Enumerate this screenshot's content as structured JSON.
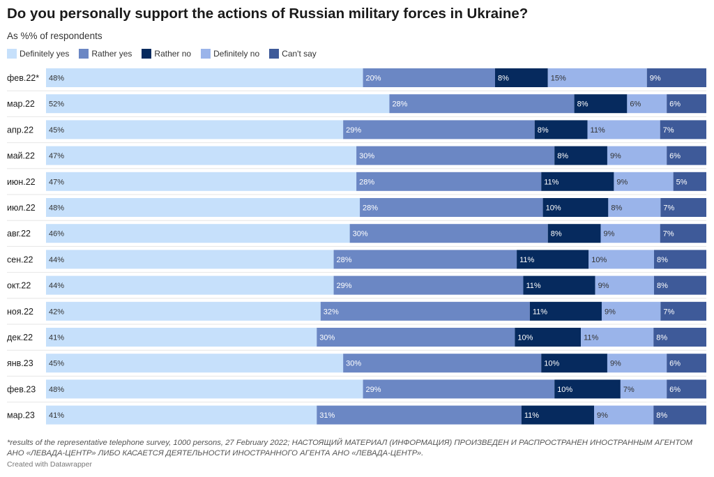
{
  "title": "Do you personally support the actions of Russian military forces in Ukraine?",
  "subtitle": "As %% of respondents",
  "footnote": "*results of the representative telephone survey, 1000 persons, 27 February 2022; НАСТОЯЩИЙ МАТЕРИАЛ (ИНФОРМАЦИЯ) ПРОИЗВЕДЕН И РАСПРОСТРАНЕН ИНОСТРАННЫМ АГЕНТОМ АНО «ЛЕВАДА-ЦЕНТР» ЛИБО КАСАЕТСЯ ДЕЯТЕЛЬНОСТИ ИНОСТРАННОГО АГЕНТА АНО «ЛЕВАДА-ЦЕНТР».",
  "credit": "Created with Datawrapper",
  "legend": [
    {
      "label": "Definitely yes",
      "color": "#c6e0fb"
    },
    {
      "label": "Rather yes",
      "color": "#6b87c4"
    },
    {
      "label": "Rather no",
      "color": "#062a5e"
    },
    {
      "label": "Definitely no",
      "color": "#9ab4ea"
    },
    {
      "label": "Can't say",
      "color": "#3e5a99"
    }
  ],
  "chart_data": {
    "type": "bar",
    "orientation": "horizontal",
    "stacked": true,
    "unit": "%",
    "categories": [
      "фев.22*",
      "мар.22",
      "апр.22",
      "май.22",
      "июн.22",
      "июл.22",
      "авг.22",
      "сен.22",
      "окт.22",
      "ноя.22",
      "дек.22",
      "янв.23",
      "фев.23",
      "мар.23"
    ],
    "series": [
      {
        "name": "Definitely yes",
        "color": "#c6e0fb",
        "label_color": "#333333",
        "values": [
          48,
          52,
          45,
          47,
          47,
          48,
          46,
          44,
          44,
          42,
          41,
          45,
          48,
          41
        ]
      },
      {
        "name": "Rather yes",
        "color": "#6b87c4",
        "label_color": "#ffffff",
        "values": [
          20,
          28,
          29,
          30,
          28,
          28,
          30,
          28,
          29,
          32,
          30,
          30,
          29,
          31
        ]
      },
      {
        "name": "Rather no",
        "color": "#062a5e",
        "label_color": "#ffffff",
        "values": [
          8,
          8,
          8,
          8,
          11,
          10,
          8,
          11,
          11,
          11,
          10,
          10,
          10,
          11
        ]
      },
      {
        "name": "Definitely no",
        "color": "#9ab4ea",
        "label_color": "#333333",
        "values": [
          15,
          6,
          11,
          9,
          9,
          8,
          9,
          10,
          9,
          9,
          11,
          9,
          7,
          9
        ]
      },
      {
        "name": "Can't say",
        "color": "#3e5a99",
        "label_color": "#ffffff",
        "values": [
          9,
          6,
          7,
          6,
          5,
          7,
          7,
          8,
          8,
          7,
          8,
          6,
          6,
          8
        ]
      }
    ]
  }
}
